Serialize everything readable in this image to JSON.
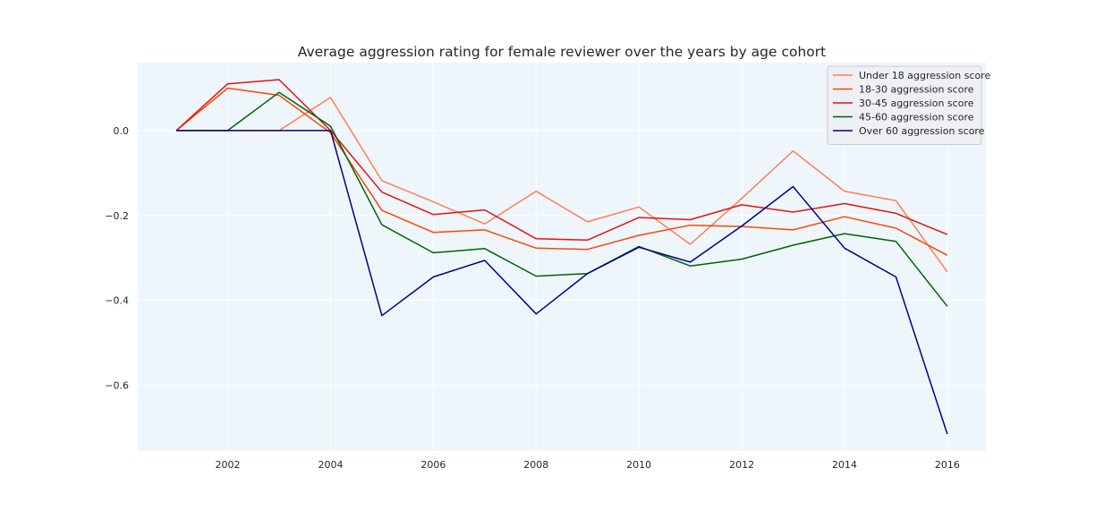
{
  "chart_data": {
    "type": "line",
    "title": "Average aggression rating for female reviewer over the years by age cohort",
    "xlabel": "",
    "ylabel": "",
    "x": [
      2001,
      2002,
      2003,
      2004,
      2005,
      2006,
      2007,
      2008,
      2009,
      2010,
      2011,
      2012,
      2013,
      2014,
      2015,
      2016
    ],
    "xticks": [
      2002,
      2004,
      2006,
      2008,
      2010,
      2012,
      2014,
      2016
    ],
    "yticks": [
      0.0,
      -0.2,
      -0.4,
      -0.6
    ],
    "ytick_labels": [
      "0.0",
      "−0.2",
      "−0.4",
      "−0.6"
    ],
    "xlim": [
      2000.25,
      2016.75
    ],
    "ylim": [
      -0.755,
      0.16
    ],
    "grid": true,
    "background": "#eef6fc",
    "legend_position": "top-right",
    "series": [
      {
        "name": "Under 18 aggression score",
        "color": "#ff7f50",
        "values": [
          0.0,
          0.0,
          0.0,
          0.078,
          -0.118,
          -0.168,
          -0.22,
          -0.143,
          -0.215,
          -0.18,
          -0.268,
          -0.16,
          -0.048,
          -0.143,
          -0.165,
          -0.333
        ]
      },
      {
        "name": "18-30 aggression score",
        "color": "#ff4500",
        "values": [
          0.0,
          0.1,
          0.083,
          -0.005,
          -0.188,
          -0.24,
          -0.234,
          -0.277,
          -0.28,
          -0.247,
          -0.223,
          -0.226,
          -0.234,
          -0.203,
          -0.23,
          -0.294
        ]
      },
      {
        "name": "30-45 aggression score",
        "color": "#e8110e",
        "values": [
          0.0,
          0.11,
          0.12,
          0.0,
          -0.145,
          -0.198,
          -0.187,
          -0.255,
          -0.258,
          -0.205,
          -0.21,
          -0.175,
          -0.192,
          -0.172,
          -0.195,
          -0.245
        ]
      },
      {
        "name": "45-60 aggression score",
        "color": "#006400",
        "values": [
          0.0,
          0.0,
          0.09,
          0.01,
          -0.222,
          -0.288,
          -0.278,
          -0.343,
          -0.337,
          -0.273,
          -0.319,
          -0.303,
          -0.27,
          -0.243,
          -0.261,
          -0.414
        ]
      },
      {
        "name": "Over 60 aggression score",
        "color": "#00008b",
        "values": [
          0.0,
          0.0,
          0.0,
          0.0,
          -0.436,
          -0.345,
          -0.306,
          -0.432,
          -0.337,
          -0.275,
          -0.31,
          -0.225,
          -0.132,
          -0.277,
          -0.345,
          -0.715
        ]
      }
    ]
  }
}
